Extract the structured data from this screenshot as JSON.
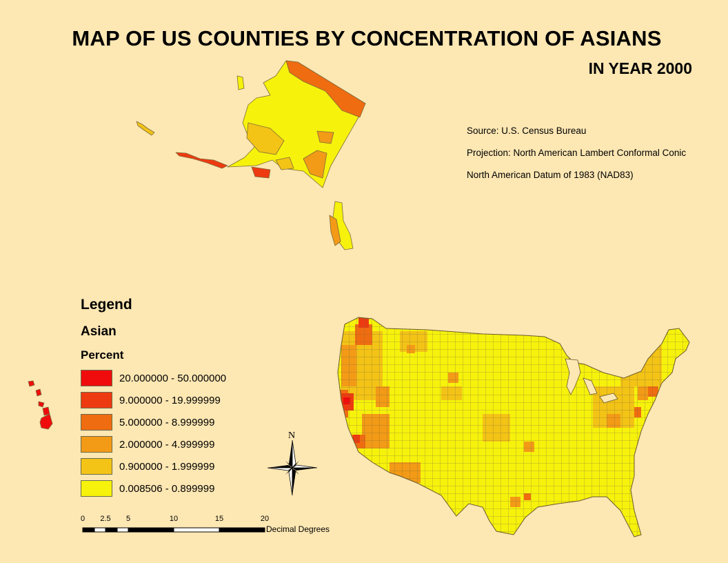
{
  "title": "MAP OF US COUNTIES BY CONCENTRATION OF ASIANS",
  "subtitle": "IN YEAR 2000",
  "info": {
    "source": "Source: U.S. Census Bureau",
    "projection": "Projection:  North American Lambert Conformal Conic",
    "datum": "North American Datum of 1983 (NAD83)"
  },
  "legend": {
    "title": "Legend",
    "field": "Asian",
    "unit": "Percent",
    "classes": [
      {
        "label": "20.000000 - 50.000000",
        "color": "#f00c0c"
      },
      {
        "label": "9.000000 - 19.999999",
        "color": "#ee3a10"
      },
      {
        "label": "5.000000 - 8.999999",
        "color": "#f06c10"
      },
      {
        "label": "2.000000 - 4.999999",
        "color": "#f39a16"
      },
      {
        "label": "0.900000 - 1.999999",
        "color": "#f3c316"
      },
      {
        "label": "0.008506 - 0.899999",
        "color": "#f6f20c"
      }
    ]
  },
  "scale_bar": {
    "labels": [
      "0",
      "2.5",
      "5",
      "10",
      "15",
      "20"
    ],
    "unit": "Decimal Degrees"
  },
  "north_arrow": {
    "label": "N"
  },
  "colors": {
    "background": "#fde7b3",
    "county_border": "#7a6a3a"
  }
}
